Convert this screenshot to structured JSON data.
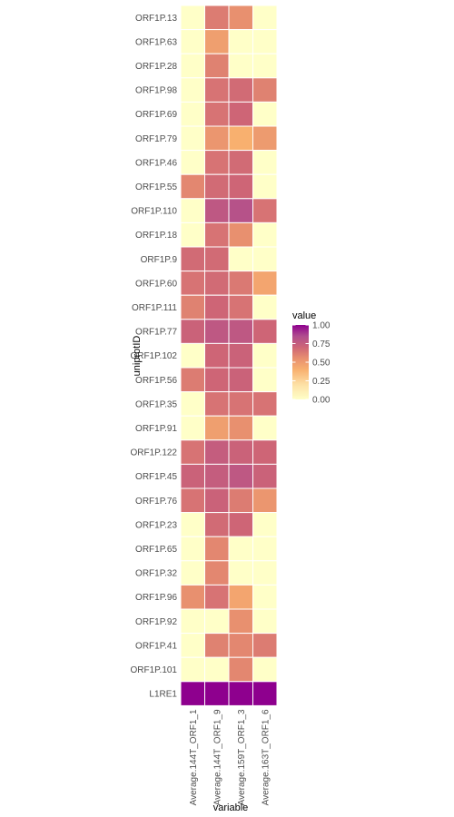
{
  "chart_data": {
    "type": "heatmap",
    "title": "",
    "xlabel": "variable",
    "ylabel": "uniprotID",
    "columns": [
      "Average.144T_ORF1_1",
      "Average.144T_ORF1_9",
      "Average.159T_ORF1_3",
      "Average.163T_ORF1_6"
    ],
    "rows": [
      {
        "label": "ORF1P.13",
        "values": [
          0.0,
          0.62,
          0.55,
          0.0
        ]
      },
      {
        "label": "ORF1P.63",
        "values": [
          0.0,
          0.48,
          0.0,
          0.0
        ]
      },
      {
        "label": "ORF1P.28",
        "values": [
          0.0,
          0.6,
          0.0,
          0.0
        ]
      },
      {
        "label": "ORF1P.98",
        "values": [
          0.0,
          0.65,
          0.68,
          0.6
        ]
      },
      {
        "label": "ORF1P.69",
        "values": [
          0.0,
          0.65,
          0.7,
          0.0
        ]
      },
      {
        "label": "ORF1P.79",
        "values": [
          0.0,
          0.52,
          0.4,
          0.5
        ]
      },
      {
        "label": "ORF1P.46",
        "values": [
          0.0,
          0.65,
          0.68,
          0.0
        ]
      },
      {
        "label": "ORF1P.55",
        "values": [
          0.58,
          0.68,
          0.7,
          0.0
        ]
      },
      {
        "label": "ORF1P.110",
        "values": [
          0.0,
          0.78,
          0.82,
          0.65
        ]
      },
      {
        "label": "ORF1P.18",
        "values": [
          0.0,
          0.65,
          0.55,
          0.0
        ]
      },
      {
        "label": "ORF1P.9",
        "values": [
          0.68,
          0.68,
          0.0,
          0.0
        ]
      },
      {
        "label": "ORF1P.60",
        "values": [
          0.65,
          0.68,
          0.63,
          0.45
        ]
      },
      {
        "label": "ORF1P.111",
        "values": [
          0.6,
          0.7,
          0.65,
          0.0
        ]
      },
      {
        "label": "ORF1P.77",
        "values": [
          0.72,
          0.78,
          0.78,
          0.7
        ]
      },
      {
        "label": "ORF1P.102",
        "values": [
          0.0,
          0.7,
          0.72,
          0.0
        ]
      },
      {
        "label": "ORF1P.56",
        "values": [
          0.62,
          0.7,
          0.72,
          0.0
        ]
      },
      {
        "label": "ORF1P.35",
        "values": [
          0.0,
          0.65,
          0.65,
          0.65
        ]
      },
      {
        "label": "ORF1P.91",
        "values": [
          0.0,
          0.48,
          0.55,
          0.0
        ]
      },
      {
        "label": "ORF1P.122",
        "values": [
          0.65,
          0.75,
          0.72,
          0.7
        ]
      },
      {
        "label": "ORF1P.45",
        "values": [
          0.72,
          0.75,
          0.78,
          0.72
        ]
      },
      {
        "label": "ORF1P.76",
        "values": [
          0.65,
          0.72,
          0.62,
          0.52
        ]
      },
      {
        "label": "ORF1P.23",
        "values": [
          0.0,
          0.68,
          0.7,
          0.0
        ]
      },
      {
        "label": "ORF1P.65",
        "values": [
          0.0,
          0.58,
          0.0,
          0.0
        ]
      },
      {
        "label": "ORF1P.32",
        "values": [
          0.0,
          0.58,
          0.0,
          0.0
        ]
      },
      {
        "label": "ORF1P.96",
        "values": [
          0.55,
          0.65,
          0.45,
          0.0
        ]
      },
      {
        "label": "ORF1P.92",
        "values": [
          0.0,
          0.0,
          0.55,
          0.0
        ]
      },
      {
        "label": "ORF1P.41",
        "values": [
          0.0,
          0.6,
          0.58,
          0.62
        ]
      },
      {
        "label": "ORF1P.101",
        "values": [
          0.0,
          0.0,
          0.58,
          0.0
        ]
      },
      {
        "label": "L1RE1",
        "values": [
          1.0,
          1.0,
          1.0,
          1.0
        ]
      }
    ],
    "legend": {
      "title": "value",
      "ticks": [
        0.0,
        0.25,
        0.5,
        0.75,
        1.0
      ],
      "tick_labels": [
        "0.00",
        "0.25",
        "0.50",
        "0.75",
        "1.00"
      ],
      "placement": "right"
    },
    "value_range": [
      0,
      1
    ],
    "colors": {
      "scale": [
        {
          "v": 0.0,
          "c": "#FFFFC8"
        },
        {
          "v": 0.2,
          "c": "#FDE0A5"
        },
        {
          "v": 0.4,
          "c": "#F8B06F"
        },
        {
          "v": 0.55,
          "c": "#E8906F"
        },
        {
          "v": 0.7,
          "c": "#CE6576"
        },
        {
          "v": 0.85,
          "c": "#B04D8E"
        },
        {
          "v": 1.0,
          "c": "#8E008E"
        }
      ],
      "tile_border": "#ffffff"
    },
    "grid": false
  }
}
